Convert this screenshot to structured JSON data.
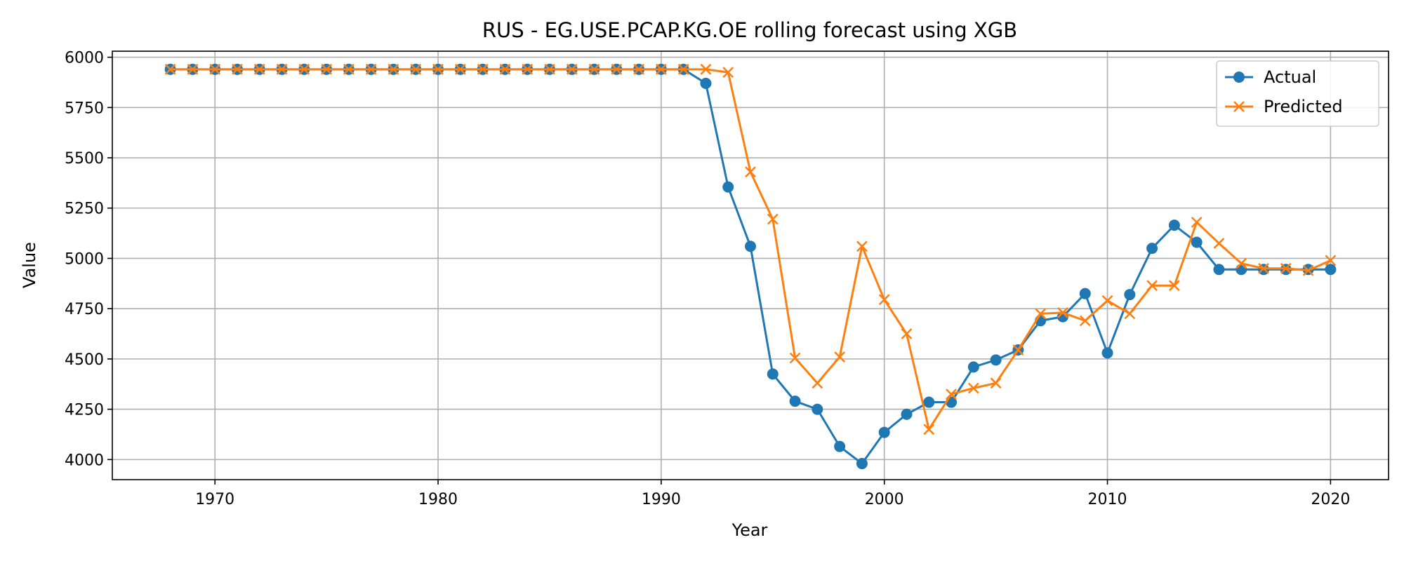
{
  "chart_data": {
    "type": "line",
    "title": "RUS - EG.USE.PCAP.KG.OE rolling forecast using XGB",
    "xlabel": "Year",
    "ylabel": "Value",
    "xlim": [
      1965.4,
      2022.6
    ],
    "ylim": [
      3900,
      6030
    ],
    "xticks": [
      1970,
      1980,
      1990,
      2000,
      2010,
      2020
    ],
    "yticks": [
      4000,
      4250,
      4500,
      4750,
      5000,
      5250,
      5500,
      5750,
      6000
    ],
    "grid": true,
    "legend_position": "top-right",
    "x": [
      1968,
      1969,
      1970,
      1971,
      1972,
      1973,
      1974,
      1975,
      1976,
      1977,
      1978,
      1979,
      1980,
      1981,
      1982,
      1983,
      1984,
      1985,
      1986,
      1987,
      1988,
      1989,
      1990,
      1991,
      1992,
      1993,
      1994,
      1995,
      1996,
      1997,
      1998,
      1999,
      2000,
      2001,
      2002,
      2003,
      2004,
      2005,
      2006,
      2007,
      2008,
      2009,
      2010,
      2011,
      2012,
      2013,
      2014,
      2015,
      2016,
      2017,
      2018,
      2019,
      2020
    ],
    "series": [
      {
        "name": "Actual",
        "color": "#1f77b4",
        "marker": "circle",
        "values": [
          5940,
          5940,
          5940,
          5940,
          5940,
          5940,
          5940,
          5940,
          5940,
          5940,
          5940,
          5940,
          5940,
          5940,
          5940,
          5940,
          5940,
          5940,
          5940,
          5940,
          5940,
          5940,
          5940,
          5940,
          5870,
          5355,
          5060,
          4425,
          4290,
          4250,
          4065,
          3980,
          4135,
          4225,
          4285,
          4285,
          4460,
          4495,
          4545,
          4690,
          4710,
          4825,
          4530,
          4820,
          5050,
          5165,
          5080,
          4945,
          4945,
          4945,
          4945,
          4945,
          4945
        ]
      },
      {
        "name": "Predicted",
        "color": "#ff7f0e",
        "marker": "x",
        "values": [
          5940,
          5940,
          5940,
          5940,
          5940,
          5940,
          5940,
          5940,
          5940,
          5940,
          5940,
          5940,
          5940,
          5940,
          5940,
          5940,
          5940,
          5940,
          5940,
          5940,
          5940,
          5940,
          5940,
          5940,
          5940,
          5925,
          5430,
          5195,
          4505,
          4380,
          4510,
          5060,
          4795,
          4625,
          4150,
          4325,
          4355,
          4380,
          4545,
          4725,
          4730,
          4690,
          4790,
          4725,
          4865,
          4865,
          5180,
          5075,
          4975,
          4950,
          4950,
          4940,
          4990
        ]
      }
    ]
  }
}
